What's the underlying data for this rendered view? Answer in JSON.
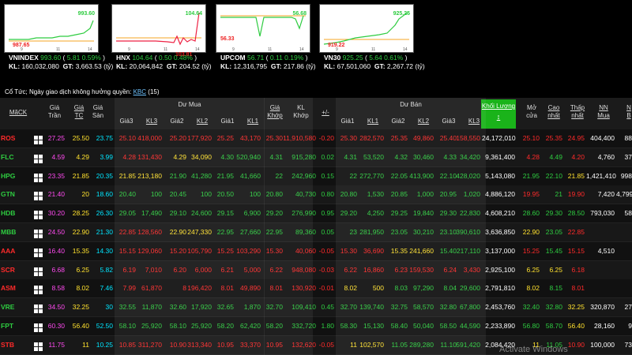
{
  "indices": [
    {
      "name": "VNINDEX",
      "value": "993.60",
      "change": "5.81",
      "pct": "0.59%",
      "kl_label": "KL:",
      "kl": "160,032,080",
      "gt_label": "GT:",
      "gt": "3,663.53",
      "unit": "(tỷ)",
      "top_label": "993.60",
      "low_label": "987.65",
      "axis": [
        "9",
        "11",
        "14"
      ],
      "color": "#2ecc40"
    },
    {
      "name": "HNX",
      "value": "104.64",
      "change": "0.50",
      "pct": "0.48%",
      "kl_label": "KL:",
      "kl": "20,064,842",
      "gt_label": "GT:",
      "gt": "204.52",
      "unit": "(tỷ)",
      "top_label": "104.64",
      "low_label": "103.81",
      "axis": [
        "9",
        "11",
        "14"
      ],
      "color": "#2ecc40"
    },
    {
      "name": "UPCOM",
      "value": "56.71",
      "change": "0.11",
      "pct": "0.19%",
      "kl_label": "KL:",
      "kl": "12,316,795",
      "gt_label": "GT:",
      "gt": "217.86",
      "unit": "(tỷ)",
      "top_label": "56.68",
      "low_label": "56.33",
      "axis": [
        "9",
        "11",
        "14"
      ],
      "color": "#2ecc40"
    },
    {
      "name": "VN30",
      "value": "925.25",
      "change": "5.64",
      "pct": "0.61%",
      "kl_label": "KL:",
      "kl": "67,501,060",
      "gt_label": "GT:",
      "gt": "2,267.72",
      "unit": "(tỷ)",
      "top_label": "925.25",
      "low_label": "919.22",
      "axis": [
        "9",
        "11",
        "14"
      ],
      "color": "#2ecc40"
    }
  ],
  "note": {
    "text": "Cổ Tức; Ngày giao dịch không hưởng quyền:",
    "link": "KBC",
    "count": "(15)"
  },
  "headers": {
    "symbol": "MãCK",
    "ceil": [
      "Giá",
      "Trần"
    ],
    "ref": [
      "Giá",
      "TC"
    ],
    "floor": [
      "Giá",
      "Sàn"
    ],
    "buy_group": "Dư Mua",
    "sell_group": "Dư Bán",
    "buy": [
      "Giá3",
      "KL3",
      "Giá2",
      "KL2",
      "Giá1",
      "KL1"
    ],
    "match_price": [
      "Giá",
      "Khớp"
    ],
    "match_vol": [
      "KL",
      "Khớp"
    ],
    "change": "+/-",
    "sell": [
      "Giá1",
      "KL1",
      "Giá2",
      "KL2",
      "Giá3",
      "KL3"
    ],
    "volume": [
      "Khối Lượng"
    ],
    "open": [
      "Mở",
      "cửa"
    ],
    "high": [
      "Cao",
      "nhất"
    ],
    "low": [
      "Thấp",
      "nhất"
    ],
    "nn_buy": [
      "NN",
      "Mua"
    ],
    "nn_sell": [
      "N",
      "B"
    ]
  },
  "colors": {
    "ceil": "#ff4af0",
    "ref": "#ffe12e",
    "floor": "#00e5ff",
    "up": "#2ecc40",
    "down": "#ff2a2a",
    "neutral": "#ffffff"
  },
  "rows": [
    {
      "sym": "ROS",
      "c": [
        "27.25",
        "25.50",
        "23.75",
        "25.10",
        "418,000",
        "25.20",
        "177,920",
        "25.25",
        "43,170",
        "25.30",
        "11,910,580",
        "-0.20",
        "25.30",
        "282,570",
        "25.35",
        "49,860",
        "25.40",
        "158,550",
        "24,172,010",
        "25.10",
        "25.35",
        "24.95",
        "404,400",
        "88"
      ],
      "k": [
        "m",
        "y",
        "c",
        "r",
        "r",
        "r",
        "r",
        "r",
        "r",
        "r",
        "r",
        "r",
        "r",
        "r",
        "r",
        "r",
        "r",
        "r",
        "w",
        "r",
        "r",
        "r",
        "w",
        "w"
      ],
      "sk": "r"
    },
    {
      "sym": "FLC",
      "c": [
        "4.59",
        "4.29",
        "3.99",
        "4.28",
        "131,430",
        "4.29",
        "34,090",
        "4.30",
        "520,940",
        "4.31",
        "915,280",
        "0.02",
        "4.31",
        "53,520",
        "4.32",
        "30,460",
        "4.33",
        "34,420",
        "9,361,400",
        "4.28",
        "4.49",
        "4.20",
        "4,760",
        "37"
      ],
      "k": [
        "m",
        "y",
        "c",
        "r",
        "r",
        "y",
        "y",
        "g",
        "g",
        "g",
        "g",
        "g",
        "g",
        "g",
        "g",
        "g",
        "g",
        "g",
        "w",
        "r",
        "g",
        "r",
        "w",
        "w"
      ],
      "sk": "g"
    },
    {
      "sym": "HPG",
      "c": [
        "23.35",
        "21.85",
        "20.35",
        "21.85",
        "213,180",
        "21.90",
        "41,280",
        "21.95",
        "41,660",
        "22",
        "242,960",
        "0.15",
        "22",
        "272,770",
        "22.05",
        "413,900",
        "22.10",
        "428,020",
        "5,143,080",
        "21.95",
        "22.10",
        "21.85",
        "1,421,410",
        "998"
      ],
      "k": [
        "m",
        "y",
        "c",
        "y",
        "y",
        "g",
        "g",
        "g",
        "g",
        "g",
        "g",
        "g",
        "g",
        "g",
        "g",
        "g",
        "g",
        "g",
        "w",
        "g",
        "g",
        "y",
        "w",
        "w"
      ],
      "sk": "g"
    },
    {
      "sym": "GTN",
      "c": [
        "21.40",
        "20",
        "18.60",
        "20.40",
        "100",
        "20.45",
        "100",
        "20.50",
        "100",
        "20.80",
        "40,730",
        "0.80",
        "20.80",
        "1,530",
        "20.85",
        "1,000",
        "20.95",
        "1,020",
        "4,886,120",
        "19.95",
        "21",
        "19.90",
        "7,420",
        "4,799"
      ],
      "k": [
        "m",
        "y",
        "c",
        "g",
        "g",
        "g",
        "g",
        "g",
        "g",
        "g",
        "g",
        "g",
        "g",
        "g",
        "g",
        "g",
        "g",
        "g",
        "w",
        "r",
        "g",
        "r",
        "w",
        "w"
      ],
      "sk": "g"
    },
    {
      "sym": "HDB",
      "c": [
        "30.20",
        "28.25",
        "26.30",
        "29.05",
        "17,490",
        "29.10",
        "24,600",
        "29.15",
        "6,900",
        "29.20",
        "276,990",
        "0.95",
        "29.20",
        "4,250",
        "29.25",
        "19,840",
        "29.30",
        "22,830",
        "4,608,210",
        "28.60",
        "29.30",
        "28.50",
        "793,030",
        "58"
      ],
      "k": [
        "m",
        "y",
        "c",
        "g",
        "g",
        "g",
        "g",
        "g",
        "g",
        "g",
        "g",
        "g",
        "g",
        "g",
        "g",
        "g",
        "g",
        "g",
        "w",
        "g",
        "g",
        "g",
        "w",
        "w"
      ],
      "sk": "g"
    },
    {
      "sym": "MBB",
      "c": [
        "24.50",
        "22.90",
        "21.30",
        "22.85",
        "128,560",
        "22.90",
        "247,330",
        "22.95",
        "27,660",
        "22.95",
        "89,360",
        "0.05",
        "23",
        "281,950",
        "23.05",
        "30,210",
        "23.10",
        "390,610",
        "3,636,850",
        "22.90",
        "23.05",
        "22.85",
        "",
        ""
      ],
      "k": [
        "m",
        "y",
        "c",
        "r",
        "r",
        "y",
        "y",
        "g",
        "g",
        "g",
        "g",
        "g",
        "g",
        "g",
        "g",
        "g",
        "g",
        "g",
        "w",
        "y",
        "g",
        "r",
        "w",
        "w"
      ],
      "sk": "g"
    },
    {
      "sym": "AAA",
      "c": [
        "16.40",
        "15.35",
        "14.30",
        "15.15",
        "129,060",
        "15.20",
        "105,790",
        "15.25",
        "103,290",
        "15.30",
        "40,060",
        "-0.05",
        "15.30",
        "36,690",
        "15.35",
        "241,660",
        "15.40",
        "217,110",
        "3,137,000",
        "15.25",
        "15.45",
        "15.15",
        "4,510",
        ""
      ],
      "k": [
        "m",
        "y",
        "c",
        "r",
        "r",
        "r",
        "r",
        "r",
        "r",
        "r",
        "r",
        "r",
        "r",
        "r",
        "y",
        "y",
        "g",
        "g",
        "w",
        "r",
        "g",
        "r",
        "w",
        "w"
      ],
      "sk": "r"
    },
    {
      "sym": "SCR",
      "c": [
        "6.68",
        "6.25",
        "5.82",
        "6.19",
        "7,010",
        "6.20",
        "6,000",
        "6.21",
        "5,000",
        "6.22",
        "948,080",
        "-0.03",
        "6.22",
        "16,860",
        "6.23",
        "159,530",
        "6.24",
        "3,430",
        "2,925,100",
        "6.25",
        "6.25",
        "6.18",
        "",
        ""
      ],
      "k": [
        "m",
        "y",
        "c",
        "r",
        "r",
        "r",
        "r",
        "r",
        "r",
        "r",
        "r",
        "r",
        "r",
        "r",
        "r",
        "r",
        "r",
        "r",
        "w",
        "y",
        "y",
        "r",
        "w",
        "w"
      ],
      "sk": "r"
    },
    {
      "sym": "ASM",
      "c": [
        "8.58",
        "8.02",
        "7.46",
        "7.99",
        "61,870",
        "8",
        "196,420",
        "8.01",
        "49,890",
        "8.01",
        "130,920",
        "-0.01",
        "8.02",
        "500",
        "8.03",
        "97,290",
        "8.04",
        "29,600",
        "2,791,810",
        "8.02",
        "8.15",
        "8.01",
        "",
        ""
      ],
      "k": [
        "m",
        "y",
        "c",
        "r",
        "r",
        "r",
        "r",
        "r",
        "r",
        "r",
        "r",
        "r",
        "y",
        "y",
        "g",
        "g",
        "g",
        "g",
        "w",
        "y",
        "g",
        "r",
        "w",
        "w"
      ],
      "sk": "r"
    },
    {
      "sym": "VRE",
      "c": [
        "34.50",
        "32.25",
        "30",
        "32.55",
        "11,870",
        "32.60",
        "17,920",
        "32.65",
        "1,870",
        "32.70",
        "109,410",
        "0.45",
        "32.70",
        "139,740",
        "32.75",
        "58,570",
        "32.80",
        "67,800",
        "2,453,760",
        "32.40",
        "32.80",
        "32.25",
        "320,870",
        "27"
      ],
      "k": [
        "m",
        "y",
        "c",
        "g",
        "g",
        "g",
        "g",
        "g",
        "g",
        "g",
        "g",
        "g",
        "g",
        "g",
        "g",
        "g",
        "g",
        "g",
        "w",
        "g",
        "g",
        "y",
        "w",
        "w"
      ],
      "sk": "g"
    },
    {
      "sym": "FPT",
      "c": [
        "60.30",
        "56.40",
        "52.50",
        "58.10",
        "25,920",
        "58.10",
        "25,920",
        "58.20",
        "62,420",
        "58.20",
        "332,720",
        "1.80",
        "58.30",
        "15,130",
        "58.40",
        "50,040",
        "58.50",
        "44,590",
        "2,233,890",
        "56.80",
        "58.70",
        "56.40",
        "28,160",
        "9"
      ],
      "k": [
        "m",
        "y",
        "c",
        "g",
        "g",
        "g",
        "g",
        "g",
        "g",
        "g",
        "g",
        "g",
        "g",
        "g",
        "g",
        "g",
        "g",
        "g",
        "w",
        "g",
        "g",
        "y",
        "w",
        "w"
      ],
      "sk": "g"
    },
    {
      "sym": "STB",
      "c": [
        "11.75",
        "11",
        "10.25",
        "10.85",
        "311,270",
        "10.90",
        "313,340",
        "10.95",
        "33,370",
        "10.95",
        "132,620",
        "-0.05",
        "11",
        "102,570",
        "11.05",
        "289,280",
        "11.10",
        "591,420",
        "2,084,420",
        "11",
        "11.05",
        "10.90",
        "100,000",
        "73"
      ],
      "k": [
        "m",
        "y",
        "c",
        "r",
        "r",
        "r",
        "r",
        "r",
        "r",
        "r",
        "r",
        "r",
        "y",
        "y",
        "g",
        "g",
        "g",
        "g",
        "w",
        "y",
        "g",
        "r",
        "w",
        "w"
      ],
      "sk": "r"
    }
  ],
  "watermark": "Activate Windows"
}
